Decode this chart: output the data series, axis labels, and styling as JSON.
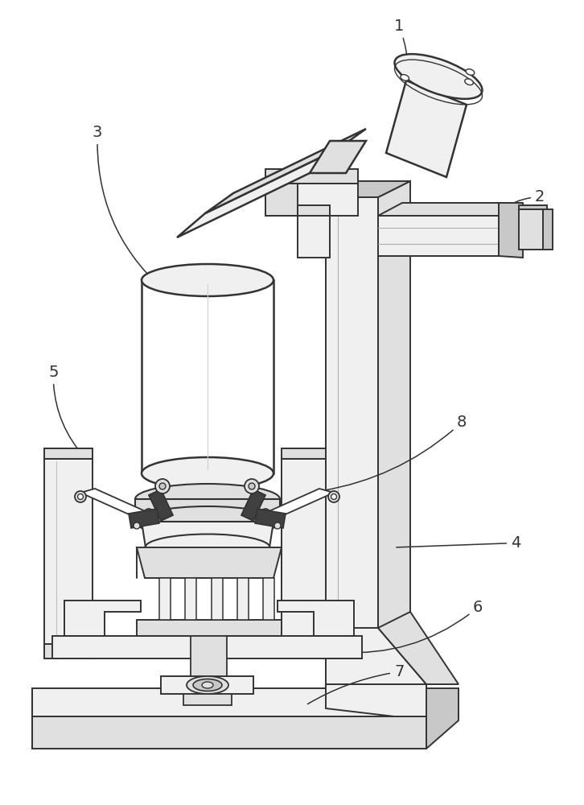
{
  "bg_color": "#ffffff",
  "line_color": "#333333",
  "fill_white": "#ffffff",
  "fill_light": "#f0f0f0",
  "fill_mid": "#e0e0e0",
  "fill_dark": "#c8c8c8"
}
